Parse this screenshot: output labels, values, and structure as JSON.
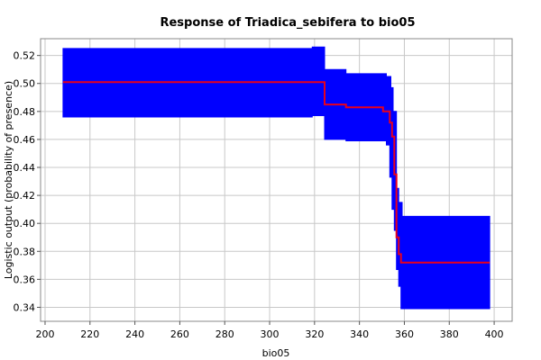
{
  "chart_data": {
    "type": "line",
    "title": "Response of Triadica_sebifera to bio05",
    "xlabel": "bio05",
    "ylabel": "Logistic output (probability of presence)",
    "xlim": [
      198,
      408
    ],
    "ylim": [
      0.33,
      0.532
    ],
    "x_ticks": [
      200,
      220,
      240,
      260,
      280,
      300,
      320,
      340,
      360,
      380,
      400
    ],
    "y_ticks": [
      0.34,
      0.36,
      0.38,
      0.4,
      0.42,
      0.44,
      0.46,
      0.48,
      0.5,
      0.52
    ],
    "grid": true,
    "series": [
      {
        "role": "mean",
        "color": "#e8001c",
        "points": [
          [
            208,
            0.501
          ],
          [
            324.5,
            0.501
          ],
          [
            324.5,
            0.485
          ],
          [
            334,
            0.485
          ],
          [
            334,
            0.483
          ],
          [
            350.5,
            0.483
          ],
          [
            350.5,
            0.48
          ],
          [
            353.5,
            0.48
          ],
          [
            353.5,
            0.472
          ],
          [
            354.5,
            0.472
          ],
          [
            354.5,
            0.462
          ],
          [
            355.5,
            0.462
          ],
          [
            355.5,
            0.435
          ],
          [
            356.5,
            0.435
          ],
          [
            356.5,
            0.39
          ],
          [
            357.5,
            0.39
          ],
          [
            357.5,
            0.378
          ],
          [
            358.5,
            0.378
          ],
          [
            358.5,
            0.372
          ],
          [
            398,
            0.372
          ]
        ]
      },
      {
        "role": "upper",
        "color": "#0000ff",
        "points": [
          [
            208,
            0.525
          ],
          [
            319,
            0.525
          ],
          [
            319,
            0.526
          ],
          [
            324.5,
            0.526
          ],
          [
            324.5,
            0.51
          ],
          [
            334,
            0.51
          ],
          [
            334,
            0.507
          ],
          [
            352,
            0.507
          ],
          [
            352,
            0.505
          ],
          [
            354,
            0.505
          ],
          [
            354,
            0.497
          ],
          [
            355,
            0.497
          ],
          [
            355,
            0.48
          ],
          [
            356.5,
            0.48
          ],
          [
            356.5,
            0.425
          ],
          [
            357.5,
            0.425
          ],
          [
            357.5,
            0.415
          ],
          [
            359,
            0.415
          ],
          [
            359,
            0.405
          ],
          [
            398,
            0.405
          ]
        ]
      },
      {
        "role": "lower",
        "color": "#0000ff",
        "points": [
          [
            208,
            0.476
          ],
          [
            319,
            0.476
          ],
          [
            319,
            0.477
          ],
          [
            324.5,
            0.477
          ],
          [
            324.5,
            0.46
          ],
          [
            334,
            0.46
          ],
          [
            334,
            0.459
          ],
          [
            352,
            0.459
          ],
          [
            352,
            0.456
          ],
          [
            353.5,
            0.456
          ],
          [
            353.5,
            0.433
          ],
          [
            354.5,
            0.433
          ],
          [
            354.5,
            0.41
          ],
          [
            355.5,
            0.41
          ],
          [
            355.5,
            0.395
          ],
          [
            356.5,
            0.395
          ],
          [
            356.5,
            0.367
          ],
          [
            357.5,
            0.367
          ],
          [
            357.5,
            0.355
          ],
          [
            358.5,
            0.355
          ],
          [
            358.5,
            0.339
          ],
          [
            398,
            0.339
          ]
        ]
      }
    ]
  }
}
